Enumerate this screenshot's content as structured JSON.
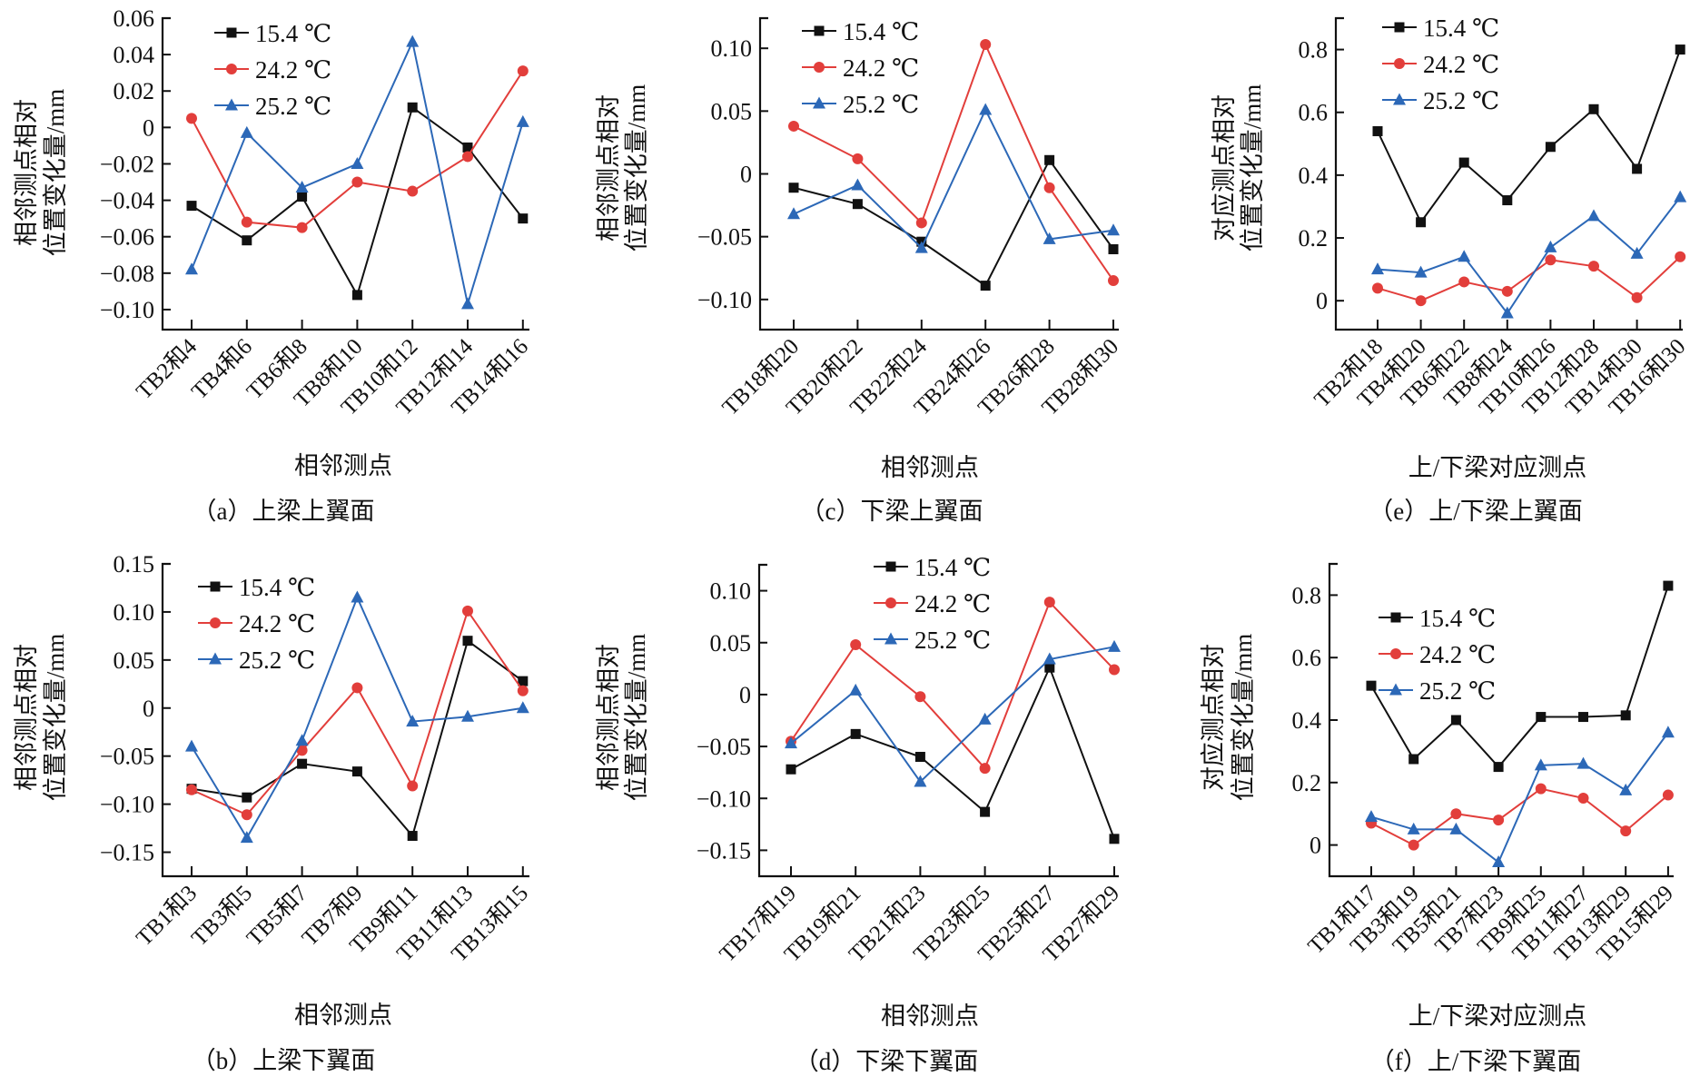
{
  "colors": {
    "s15": "#111111",
    "s24": "#e23e3b",
    "s25": "#2c68b7"
  },
  "legend_markers": {
    "s15": "square",
    "s24": "circle",
    "s25": "triangle"
  },
  "chart_data": [
    {
      "id": "a",
      "type": "line",
      "title": "（a）上梁上翼面",
      "xlabel": "相邻测点",
      "ylabel": [
        "相邻测点相对",
        "位置变化量/mm"
      ],
      "categories": [
        "TB2和4",
        "TB4和6",
        "TB6和8",
        "TB8和10",
        "TB10和12",
        "TB12和14",
        "TB14和16"
      ],
      "yticks": [
        0.06,
        0.04,
        0.02,
        0,
        -0.02,
        -0.04,
        -0.06,
        -0.08,
        -0.1
      ],
      "ytick_labels": [
        "0.06",
        "0.04",
        "0.02",
        "0",
        "−0.02",
        "−0.04",
        "−0.06",
        "−0.08",
        "−0.10"
      ],
      "ylim": [
        -0.111,
        0.06
      ],
      "grid": false,
      "legend_position": "top-left",
      "series": [
        {
          "name": "15.4 ℃",
          "key": "s15",
          "values": [
            -0.043,
            -0.062,
            -0.038,
            -0.092,
            0.011,
            -0.011,
            -0.05
          ]
        },
        {
          "name": "24.2 ℃",
          "key": "s24",
          "values": [
            0.005,
            -0.052,
            -0.055,
            -0.03,
            -0.035,
            -0.016,
            0.031
          ]
        },
        {
          "name": "25.2 ℃",
          "key": "s25",
          "values": [
            -0.078,
            -0.003,
            -0.033,
            -0.02,
            0.047,
            -0.097,
            0.003
          ]
        }
      ]
    },
    {
      "id": "b",
      "type": "line",
      "title": "（b）上梁下翼面",
      "xlabel": "相邻测点",
      "ylabel": [
        "相邻测点相对",
        "位置变化量/mm"
      ],
      "categories": [
        "TB1和3",
        "TB3和5",
        "TB5和7",
        "TB7和9",
        "TB9和11",
        "TB11和13",
        "TB13和15"
      ],
      "yticks": [
        0.15,
        0.1,
        0.05,
        0,
        -0.05,
        -0.1,
        -0.15
      ],
      "ytick_labels": [
        "0.15",
        "0.10",
        "0.05",
        "0",
        "−0.05",
        "−0.10",
        "−0.15"
      ],
      "ylim": [
        -0.175,
        0.15
      ],
      "grid": false,
      "legend_position": "top-left",
      "series": [
        {
          "name": "15.4 ℃",
          "key": "s15",
          "values": [
            -0.084,
            -0.093,
            -0.058,
            -0.066,
            -0.133,
            0.07,
            0.028
          ]
        },
        {
          "name": "24.2 ℃",
          "key": "s24",
          "values": [
            -0.085,
            -0.111,
            -0.044,
            0.021,
            -0.081,
            0.101,
            0.018
          ]
        },
        {
          "name": "25.2 ℃",
          "key": "s25",
          "values": [
            -0.04,
            -0.135,
            -0.034,
            0.115,
            -0.014,
            -0.009,
            0.0
          ]
        }
      ]
    },
    {
      "id": "c",
      "type": "line",
      "title": "（c）下梁上翼面",
      "xlabel": "相邻测点",
      "ylabel": [
        "相邻测点相对",
        "位置变化量/mm"
      ],
      "categories": [
        "TB18和20",
        "TB20和22",
        "TB22和24",
        "TB24和26",
        "TB26和28",
        "TB28和30"
      ],
      "yticks": [
        0.1,
        0.05,
        0,
        -0.05,
        -0.1
      ],
      "ytick_labels": [
        "0.10",
        "0.05",
        "0",
        "−0.05",
        "−0.10"
      ],
      "ylim": [
        -0.124,
        0.124
      ],
      "grid": false,
      "legend_position": "top-left",
      "series": [
        {
          "name": "15.4 ℃",
          "key": "s15",
          "values": [
            -0.011,
            -0.024,
            -0.054,
            -0.089,
            0.011,
            -0.06
          ]
        },
        {
          "name": "24.2 ℃",
          "key": "s24",
          "values": [
            0.038,
            0.012,
            -0.039,
            0.103,
            -0.011,
            -0.085
          ]
        },
        {
          "name": "25.2 ℃",
          "key": "s25",
          "values": [
            -0.032,
            -0.009,
            -0.059,
            0.051,
            -0.052,
            -0.045
          ]
        }
      ]
    },
    {
      "id": "d",
      "type": "line",
      "title": "（d）下梁下翼面",
      "xlabel": "相邻测点",
      "ylabel": [
        "相邻测点相对",
        "位置变化量/mm"
      ],
      "categories": [
        "TB17和19",
        "TB19和21",
        "TB21和23",
        "TB23和25",
        "TB25和27",
        "TB27和29"
      ],
      "yticks": [
        0.1,
        0.05,
        0,
        -0.05,
        -0.1,
        -0.15
      ],
      "ytick_labels": [
        "0.10",
        "0.05",
        "0",
        "−0.05",
        "−0.10",
        "−0.15"
      ],
      "ylim": [
        -0.175,
        0.125
      ],
      "grid": false,
      "legend_position": "top-center",
      "series": [
        {
          "name": "15.4 ℃",
          "key": "s15",
          "values": [
            -0.072,
            -0.038,
            -0.06,
            -0.113,
            0.026,
            -0.139
          ]
        },
        {
          "name": "24.2 ℃",
          "key": "s24",
          "values": [
            -0.045,
            0.048,
            -0.002,
            -0.071,
            0.089,
            0.024
          ]
        },
        {
          "name": "25.2 ℃",
          "key": "s25",
          "values": [
            -0.047,
            0.004,
            -0.084,
            -0.024,
            0.034,
            0.046
          ]
        }
      ]
    },
    {
      "id": "e",
      "type": "line",
      "title": "（e）上/下梁上翼面",
      "xlabel": "上/下梁对应测点",
      "ylabel": [
        "对应测点相对",
        "位置变化量/mm"
      ],
      "categories": [
        "TB2和18",
        "TB4和20",
        "TB6和22",
        "TB8和24",
        "TB10和26",
        "TB12和28",
        "TB14和30",
        "TB16和30"
      ],
      "yticks": [
        0.8,
        0.6,
        0.4,
        0.2,
        0
      ],
      "ytick_labels": [
        "0.8",
        "0.6",
        "0.4",
        "0.2",
        "0"
      ],
      "ylim": [
        -0.092,
        0.9
      ],
      "grid": false,
      "legend_position": "top-left",
      "series": [
        {
          "name": "15.4 ℃",
          "key": "s15",
          "values": [
            0.54,
            0.25,
            0.44,
            0.32,
            0.49,
            0.61,
            0.42,
            0.8
          ]
        },
        {
          "name": "24.2 ℃",
          "key": "s24",
          "values": [
            0.04,
            0.0,
            0.06,
            0.03,
            0.13,
            0.11,
            0.01,
            0.14
          ]
        },
        {
          "name": "25.2 ℃",
          "key": "s25",
          "values": [
            0.1,
            0.09,
            0.14,
            -0.04,
            0.17,
            0.27,
            0.15,
            0.33
          ]
        }
      ]
    },
    {
      "id": "f",
      "type": "line",
      "title": "（f）上/下梁下翼面",
      "xlabel": "上/下梁对应测点",
      "ylabel": [
        "对应测点相对",
        "位置变化量/mm"
      ],
      "categories": [
        "TB1和17",
        "TB3和19",
        "TB5和21",
        "TB7和23",
        "TB9和25",
        "TB11和27",
        "TB13和29",
        "TB15和29"
      ],
      "yticks": [
        0.8,
        0.6,
        0.4,
        0.2,
        0
      ],
      "ytick_labels": [
        "0.8",
        "0.6",
        "0.4",
        "0.2",
        "0"
      ],
      "ylim": [
        -0.1,
        0.9
      ],
      "grid": false,
      "legend_position": "top-left",
      "series": [
        {
          "name": "15.4 ℃",
          "key": "s15",
          "values": [
            0.51,
            0.275,
            0.4,
            0.25,
            0.41,
            0.41,
            0.415,
            0.83
          ]
        },
        {
          "name": "24.2 ℃",
          "key": "s24",
          "values": [
            0.07,
            0.0,
            0.1,
            0.08,
            0.18,
            0.15,
            0.045,
            0.16
          ]
        },
        {
          "name": "25.2 ℃",
          "key": "s25",
          "values": [
            0.09,
            0.05,
            0.05,
            -0.055,
            0.255,
            0.26,
            0.175,
            0.36
          ]
        }
      ]
    }
  ]
}
